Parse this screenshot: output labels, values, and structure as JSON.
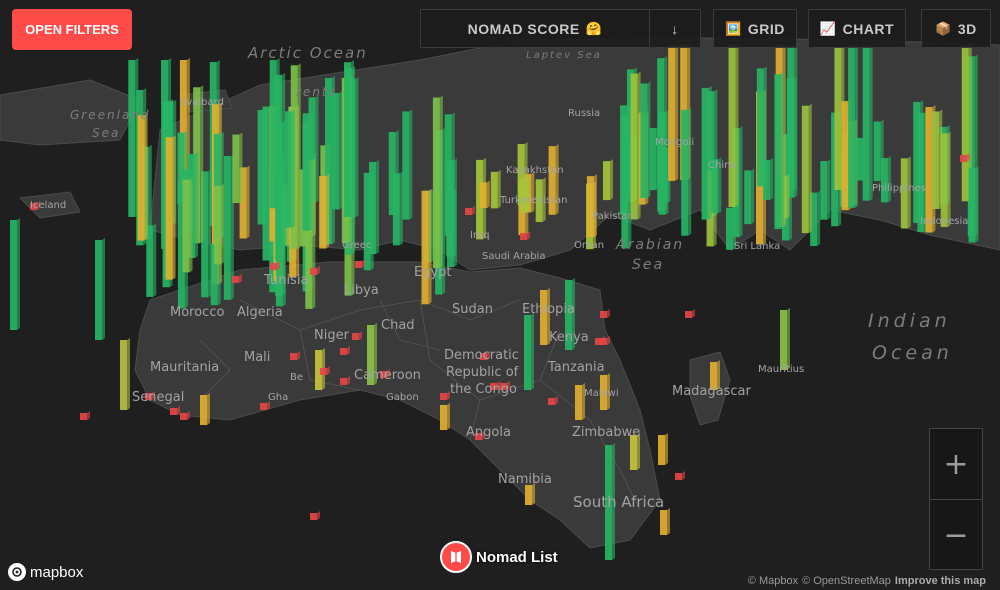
{
  "buttons": {
    "open_filters": "OPEN FILTERS",
    "sort_field": "NOMAD SCORE",
    "sort_emoji": "🤗",
    "sort_direction": "↓",
    "grid": "GRID",
    "grid_icon": "🖼️",
    "chart": "CHART",
    "chart_icon": "📈",
    "three_d": "3D",
    "three_d_icon": "📦",
    "zoom_in": "+",
    "zoom_out": "−"
  },
  "brand": {
    "name": "Nomad List"
  },
  "mapbox_logo": "mapbox",
  "attribution": {
    "mapbox": "© Mapbox",
    "osm": "© OpenStreetMap",
    "improve": "Improve this map"
  },
  "oceans": {
    "arctic": "Arctic Ocean",
    "greenland_sea_1": "Greenland",
    "greenland_sea_2": "Sea",
    "laptev": "Laptev Sea",
    "barents": "rents",
    "arabian_1": "Arabian",
    "arabian_2": "Sea",
    "indian_1": "Indian",
    "indian_2": "Ocean"
  },
  "countries": {
    "svalbard": "Svalbard",
    "iceland": "Iceland",
    "russia": "Russia",
    "mongolia": "Mongoli",
    "china": "China",
    "kazakhstan": "Kazakhstan",
    "turkmenistan": "Turkmenistan",
    "pakistan": "Pakistan",
    "iraq": "Iraq",
    "saudi": "Saudi Arabia",
    "oman": "Oman",
    "sri_lanka": "Sri Lanka",
    "egypt": "Egypt",
    "libya": "Libya",
    "tunisia": "Tunisia",
    "algeria": "Algeria",
    "morocco": "Morocco",
    "sudan": "Sudan",
    "ethiopia": "Ethiopia",
    "chad": "Chad",
    "niger": "Niger",
    "mali": "Mali",
    "mauritania": "Mauritania",
    "senegal": "Senegal",
    "benin": "Be",
    "ghana": "Gha",
    "cameroon": "Cameroon",
    "gabon": "Gabon",
    "drc_1": "Democratic",
    "drc_2": "Republic of",
    "drc_3": "the Congo",
    "kenya": "Kenya",
    "tanzania": "Tanzania",
    "malawi": "Malawi",
    "zimbabwe": "Zimbabwe",
    "angola": "Angola",
    "namibia": "Namibia",
    "south_africa": "South Africa",
    "madagascar": "Madagascar",
    "mauritius": "Mauritius",
    "philippines": "Philippines",
    "indonesia": "Indonesia",
    "greece": "Greec"
  },
  "colors": {
    "high_score": "#27b564",
    "mid_score": "#e0b030",
    "low_score": "#e64545",
    "land": "#3a3a3b",
    "water": "#1f1f20"
  }
}
